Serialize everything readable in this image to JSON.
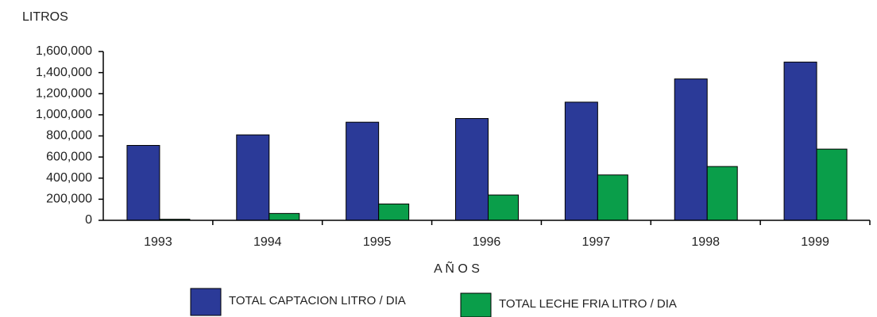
{
  "chart_data": {
    "type": "bar",
    "y_label": "LITROS",
    "x_label": "A Ñ O S",
    "categories": [
      "1993",
      "1994",
      "1995",
      "1996",
      "1997",
      "1998",
      "1999"
    ],
    "series": [
      {
        "name": "TOTAL CAPTACION LITRO / DIA",
        "color": "#2b3a98",
        "values": [
          710000,
          810000,
          930000,
          965000,
          1120000,
          1340000,
          1500000
        ]
      },
      {
        "name": "TOTAL LECHE FRIA LITRO / DIA",
        "color": "#0a9e4a",
        "values": [
          10000,
          65000,
          155000,
          240000,
          430000,
          510000,
          675000
        ]
      }
    ],
    "ylim": [
      0,
      1600000
    ],
    "yticks": [
      0,
      {
        "value": 200000,
        "label": "200,000"
      },
      {
        "value": 400000,
        "label": "400,000"
      },
      {
        "value": 600000,
        "label": "600,000"
      },
      {
        "value": 800000,
        "label": "800,000"
      },
      {
        "value": 1000000,
        "label": "1,000,000"
      },
      {
        "value": 1200000,
        "label": "1,200,000"
      },
      {
        "value": 1400000,
        "label": "1,400,000"
      },
      {
        "value": 1600000,
        "label": "1,600,000"
      }
    ],
    "grid": false,
    "legend": "bottom"
  }
}
